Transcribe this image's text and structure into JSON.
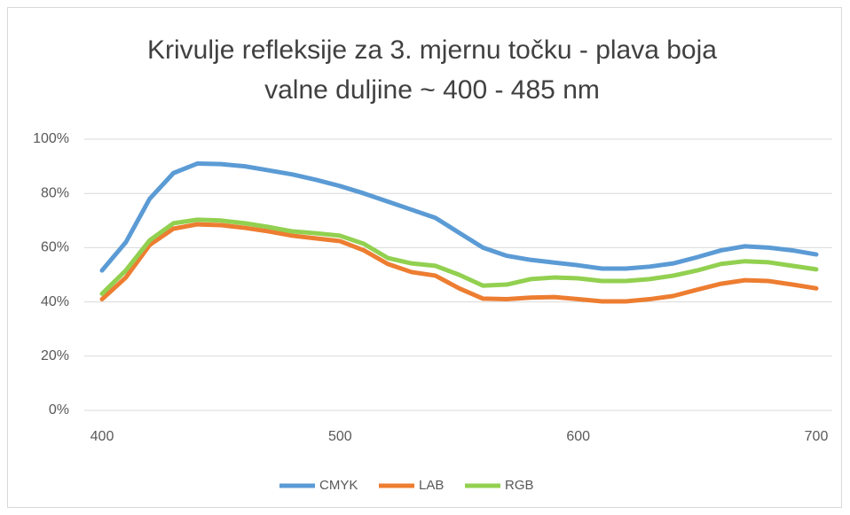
{
  "chart_data": {
    "type": "line",
    "title": [
      "Krivulje refleksije za 3. mjernu točku - plava boja",
      "valne duljine ~ 400 - 485 nm"
    ],
    "x": [
      400,
      410,
      420,
      430,
      440,
      450,
      460,
      470,
      480,
      490,
      500,
      510,
      520,
      530,
      540,
      550,
      560,
      570,
      580,
      590,
      600,
      610,
      620,
      630,
      640,
      650,
      660,
      670,
      680,
      690,
      700
    ],
    "series": [
      {
        "name": "CMYK",
        "color": "#5b9bd5",
        "values": [
          51.6,
          62,
          78,
          87.5,
          91,
          90.8,
          90,
          88.5,
          87,
          85,
          82.7,
          80,
          77,
          74,
          71,
          65.5,
          60,
          57,
          55.5,
          54.5,
          53.5,
          52.3,
          52.3,
          53,
          54.2,
          56.5,
          59,
          60.5,
          60,
          59,
          57.5
        ]
      },
      {
        "name": "LAB",
        "color": "#ed7d31",
        "values": [
          41,
          49,
          61,
          67,
          68.6,
          68.3,
          67.3,
          66,
          64.4,
          63.4,
          62.4,
          59,
          54,
          51,
          49.7,
          45,
          41.2,
          41,
          41.6,
          41.8,
          41,
          40.2,
          40.2,
          41,
          42.2,
          44.5,
          46.7,
          48,
          47.7,
          46.4,
          45
        ]
      },
      {
        "name": "RGB",
        "color": "#92d050",
        "values": [
          43,
          51.6,
          62.7,
          69,
          70.3,
          70,
          69,
          67.6,
          66,
          65.3,
          64.4,
          61.4,
          56.2,
          54.2,
          53.3,
          50,
          46,
          46.4,
          48.4,
          49,
          48.7,
          47.7,
          47.7,
          48.4,
          49.7,
          51.6,
          54,
          55,
          54.6,
          53.3,
          52
        ]
      }
    ],
    "xlim": [
      400,
      700
    ],
    "xticks": [
      400,
      500,
      600,
      700
    ],
    "ylim": [
      0,
      100
    ],
    "yticks": [
      {
        "value": 0,
        "label": "0%"
      },
      {
        "value": 20,
        "label": "20%"
      },
      {
        "value": 40,
        "label": "40%"
      },
      {
        "value": 60,
        "label": "60%"
      },
      {
        "value": 80,
        "label": "80%"
      },
      {
        "value": 100,
        "label": "100%"
      }
    ],
    "grid": true,
    "legend": "bottom"
  }
}
